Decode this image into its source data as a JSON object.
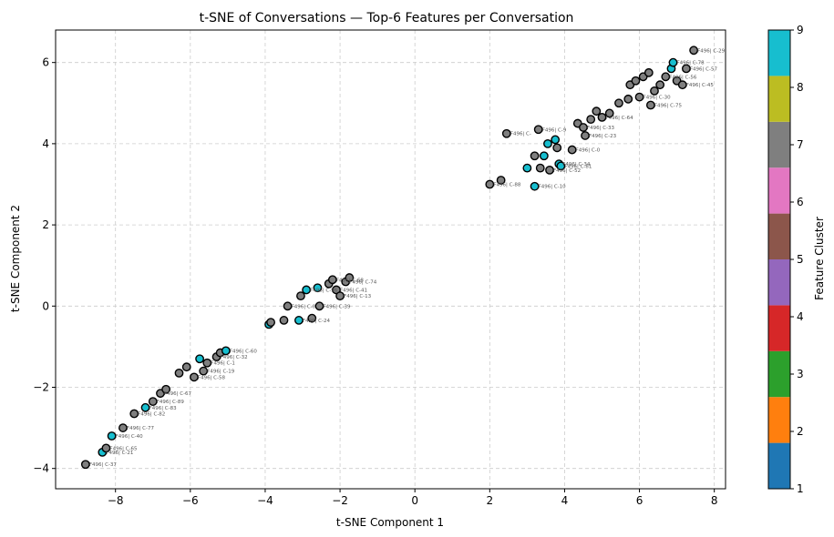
{
  "chart_data": {
    "type": "scatter",
    "title": "t-SNE of Conversations — Top-6 Features per Conversation",
    "xlabel": "t-SNE Component 1",
    "ylabel": "t-SNE Component 2",
    "xlim": [
      -9.6,
      8.3
    ],
    "ylim": [
      -4.5,
      6.8
    ],
    "xticks": [
      -8,
      -6,
      -4,
      -2,
      0,
      2,
      4,
      6,
      8
    ],
    "yticks": [
      -4,
      -2,
      0,
      2,
      4,
      6
    ],
    "tick_labels_x": [
      "−8",
      "−6",
      "−4",
      "−2",
      "0",
      "2",
      "4",
      "6",
      "8"
    ],
    "tick_labels_y": [
      "−4",
      "−2",
      "0",
      "2",
      "4",
      "6"
    ],
    "grid": true,
    "colorbar": {
      "label": "Feature Cluster",
      "min": 1,
      "max": 9,
      "ticks": [
        1,
        2,
        3,
        4,
        5,
        6,
        7,
        8,
        9
      ],
      "colors": [
        "#1f77b4",
        "#ff7f0e",
        "#2ca02c",
        "#d62728",
        "#9467bd",
        "#8c564b",
        "#e377c2",
        "#7f7f7f",
        "#bcbd22",
        "#17becf"
      ]
    },
    "points": [
      {
        "x": -8.8,
        "y": -3.9,
        "c": 7,
        "label": "F496| C-37"
      },
      {
        "x": -8.35,
        "y": -3.6,
        "c": 9,
        "label": "F496| C-21"
      },
      {
        "x": -8.25,
        "y": -3.5,
        "c": 7,
        "label": "F496| C-65"
      },
      {
        "x": -8.1,
        "y": -3.2,
        "c": 9,
        "label": "F496| C-40"
      },
      {
        "x": -7.8,
        "y": -3.0,
        "c": 7,
        "label": "F496| C-77"
      },
      {
        "x": -7.5,
        "y": -2.65,
        "c": 7,
        "label": "F496| C-82"
      },
      {
        "x": -7.2,
        "y": -2.5,
        "c": 9,
        "label": "F496| C-83"
      },
      {
        "x": -7.0,
        "y": -2.35,
        "c": 7,
        "label": "F496| C-89"
      },
      {
        "x": -6.8,
        "y": -2.15,
        "c": 7,
        "label": "F496| C-67"
      },
      {
        "x": -6.65,
        "y": -2.05,
        "c": 7,
        "label": ""
      },
      {
        "x": -6.3,
        "y": -1.65,
        "c": 7,
        "label": ""
      },
      {
        "x": -6.1,
        "y": -1.5,
        "c": 7,
        "label": ""
      },
      {
        "x": -5.9,
        "y": -1.75,
        "c": 7,
        "label": "F496| C-58"
      },
      {
        "x": -5.75,
        "y": -1.3,
        "c": 9,
        "label": ""
      },
      {
        "x": -5.65,
        "y": -1.6,
        "c": 7,
        "label": "F496| C-19"
      },
      {
        "x": -5.55,
        "y": -1.4,
        "c": 7,
        "label": "F496| C-1"
      },
      {
        "x": -5.3,
        "y": -1.25,
        "c": 7,
        "label": "F496| C-32"
      },
      {
        "x": -5.2,
        "y": -1.15,
        "c": 7,
        "label": ""
      },
      {
        "x": -5.05,
        "y": -1.1,
        "c": 9,
        "label": "F496| C-60"
      },
      {
        "x": -3.9,
        "y": -0.45,
        "c": 9,
        "label": ""
      },
      {
        "x": -3.85,
        "y": -0.4,
        "c": 7,
        "label": ""
      },
      {
        "x": -3.5,
        "y": -0.35,
        "c": 7,
        "label": ""
      },
      {
        "x": -3.4,
        "y": 0.0,
        "c": 7,
        "label": "F496| C-0"
      },
      {
        "x": -3.1,
        "y": -0.35,
        "c": 9,
        "label": "F496| C-24"
      },
      {
        "x": -3.05,
        "y": 0.25,
        "c": 7,
        "label": ""
      },
      {
        "x": -2.9,
        "y": 0.4,
        "c": 9,
        "label": "F496| C-96"
      },
      {
        "x": -2.75,
        "y": -0.3,
        "c": 7,
        "label": ""
      },
      {
        "x": -2.6,
        "y": 0.45,
        "c": 9,
        "label": ""
      },
      {
        "x": -2.55,
        "y": 0.0,
        "c": 7,
        "label": "F496| C-39"
      },
      {
        "x": -2.3,
        "y": 0.55,
        "c": 7,
        "label": ""
      },
      {
        "x": -2.2,
        "y": 0.65,
        "c": 7,
        "label": "F496| C-68"
      },
      {
        "x": -2.1,
        "y": 0.4,
        "c": 7,
        "label": "F496| C-41"
      },
      {
        "x": -2.0,
        "y": 0.25,
        "c": 7,
        "label": "F496| C-13"
      },
      {
        "x": -1.85,
        "y": 0.6,
        "c": 7,
        "label": "F496| C-74"
      },
      {
        "x": -1.75,
        "y": 0.7,
        "c": 7,
        "label": ""
      },
      {
        "x": 2.0,
        "y": 3.0,
        "c": 7,
        "label": "F496| C-88"
      },
      {
        "x": 2.3,
        "y": 3.1,
        "c": 7,
        "label": ""
      },
      {
        "x": 2.45,
        "y": 4.25,
        "c": 7,
        "label": "F496| C-"
      },
      {
        "x": 3.0,
        "y": 3.4,
        "c": 9,
        "label": ""
      },
      {
        "x": 3.2,
        "y": 2.95,
        "c": 9,
        "label": "F496| C-10"
      },
      {
        "x": 3.2,
        "y": 3.7,
        "c": 7,
        "label": ""
      },
      {
        "x": 3.3,
        "y": 4.35,
        "c": 7,
        "label": "F496| C-9"
      },
      {
        "x": 3.35,
        "y": 3.4,
        "c": 7,
        "label": ""
      },
      {
        "x": 3.45,
        "y": 3.7,
        "c": 9,
        "label": ""
      },
      {
        "x": 3.55,
        "y": 4.0,
        "c": 9,
        "label": ""
      },
      {
        "x": 3.6,
        "y": 3.35,
        "c": 7,
        "label": "F496| C-52"
      },
      {
        "x": 3.75,
        "y": 4.1,
        "c": 9,
        "label": ""
      },
      {
        "x": 3.8,
        "y": 3.9,
        "c": 7,
        "label": ""
      },
      {
        "x": 3.85,
        "y": 3.5,
        "c": 9,
        "label": "F496| C-34"
      },
      {
        "x": 3.9,
        "y": 3.45,
        "c": 9,
        "label": "F496| C-81"
      },
      {
        "x": 4.2,
        "y": 3.85,
        "c": 7,
        "label": "F496| C-0"
      },
      {
        "x": 4.35,
        "y": 4.5,
        "c": 7,
        "label": ""
      },
      {
        "x": 4.5,
        "y": 4.4,
        "c": 7,
        "label": "F496| C-33"
      },
      {
        "x": 4.55,
        "y": 4.2,
        "c": 7,
        "label": "F496| C-23"
      },
      {
        "x": 4.7,
        "y": 4.6,
        "c": 7,
        "label": ""
      },
      {
        "x": 4.85,
        "y": 4.8,
        "c": 7,
        "label": ""
      },
      {
        "x": 5.0,
        "y": 4.65,
        "c": 7,
        "label": "F496| C-64"
      },
      {
        "x": 5.2,
        "y": 4.75,
        "c": 7,
        "label": ""
      },
      {
        "x": 5.45,
        "y": 5.0,
        "c": 7,
        "label": ""
      },
      {
        "x": 5.7,
        "y": 5.1,
        "c": 7,
        "label": ""
      },
      {
        "x": 5.75,
        "y": 5.45,
        "c": 7,
        "label": ""
      },
      {
        "x": 5.9,
        "y": 5.55,
        "c": 7,
        "label": ""
      },
      {
        "x": 6.0,
        "y": 5.15,
        "c": 7,
        "label": "F496| C-30"
      },
      {
        "x": 6.1,
        "y": 5.65,
        "c": 7,
        "label": ""
      },
      {
        "x": 6.25,
        "y": 5.75,
        "c": 7,
        "label": ""
      },
      {
        "x": 6.3,
        "y": 4.95,
        "c": 7,
        "label": "F496| C-75"
      },
      {
        "x": 6.4,
        "y": 5.3,
        "c": 7,
        "label": ""
      },
      {
        "x": 6.55,
        "y": 5.45,
        "c": 7,
        "label": ""
      },
      {
        "x": 6.7,
        "y": 5.65,
        "c": 7,
        "label": "F496| C-56"
      },
      {
        "x": 6.85,
        "y": 5.85,
        "c": 9,
        "label": ""
      },
      {
        "x": 6.9,
        "y": 6.0,
        "c": 9,
        "label": "F496| C-78"
      },
      {
        "x": 7.0,
        "y": 5.55,
        "c": 7,
        "label": ""
      },
      {
        "x": 7.15,
        "y": 5.45,
        "c": 7,
        "label": "F496| C-45"
      },
      {
        "x": 7.25,
        "y": 5.85,
        "c": 7,
        "label": "F496| C-57"
      },
      {
        "x": 7.45,
        "y": 6.3,
        "c": 7,
        "label": "F496| C-29"
      }
    ]
  }
}
